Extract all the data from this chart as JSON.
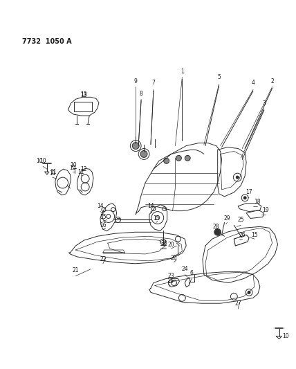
{
  "title": "7732  1050 A",
  "bg_color": "#ffffff",
  "line_color": "#2a2a2a",
  "text_color": "#1a1a1a",
  "figsize": [
    4.28,
    5.33
  ],
  "dpi": 100
}
